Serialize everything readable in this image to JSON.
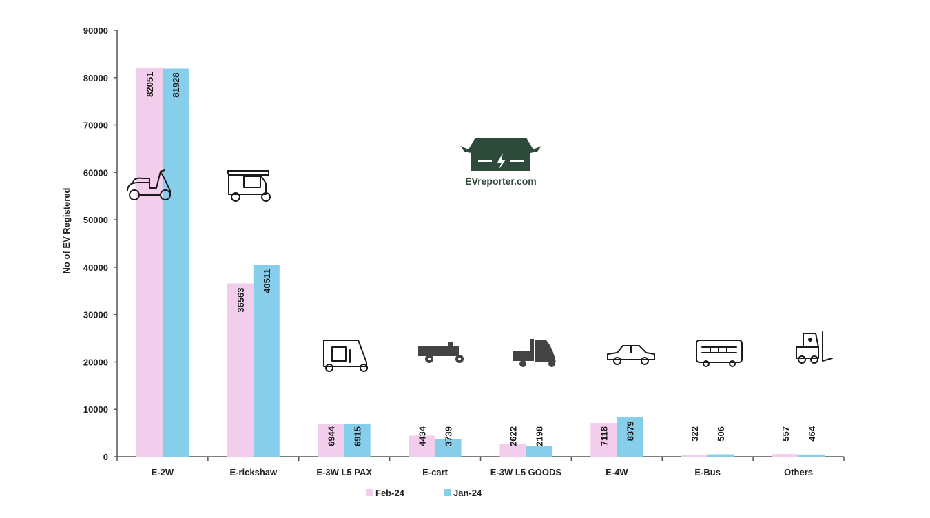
{
  "chart_data": {
    "type": "bar",
    "categories": [
      "E-2W",
      "E-rickshaw",
      "E-3W L5 PAX",
      "E-cart",
      "E-3W L5 GOODS",
      "E-4W",
      "E-Bus",
      "Others"
    ],
    "series": [
      {
        "name": "Feb-24",
        "color": "#f2cdec",
        "values": [
          82051,
          36563,
          6944,
          4434,
          2622,
          7118,
          322,
          557
        ]
      },
      {
        "name": "Jan-24",
        "color": "#87ceeb",
        "values": [
          81928,
          40511,
          6915,
          3739,
          2198,
          8379,
          506,
          464
        ]
      }
    ],
    "ylabel": "No of EV Registered",
    "xlabel": "",
    "ylim": [
      0,
      90000
    ],
    "yticks": [
      0,
      10000,
      20000,
      30000,
      40000,
      50000,
      60000,
      70000,
      80000,
      90000
    ],
    "grid": false,
    "legend_position": "bottom-center",
    "category_icons": [
      "scooter-icon",
      "rickshaw-icon",
      "passenger-auto-icon",
      "cart-icon",
      "goods-carrier-icon",
      "car-icon",
      "bus-icon",
      "forklift-icon"
    ]
  },
  "logo": {
    "text": "EVreporter.com",
    "color": "#2e4a3b"
  }
}
